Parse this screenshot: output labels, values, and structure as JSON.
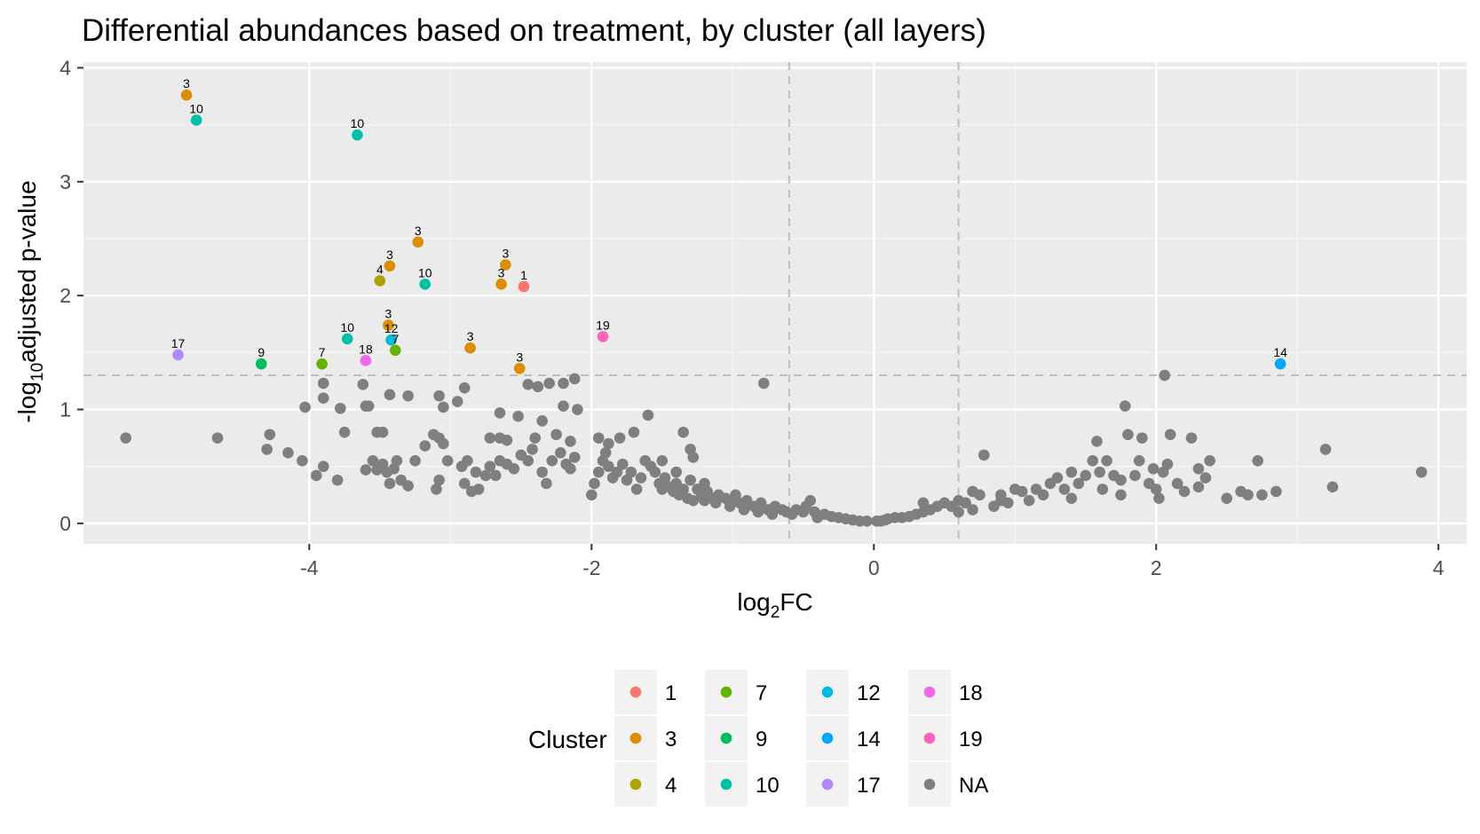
{
  "chart_data": {
    "type": "scatter",
    "title": "Differential abundances based on treatment, by cluster (all layers)",
    "xlabel": {
      "base": "log",
      "sub": "2",
      "rest": "FC"
    },
    "ylabel": {
      "base": "-log",
      "sub": "10",
      "rest": "adjusted p-value"
    },
    "xlim": [
      -5.6,
      4.2
    ],
    "ylim": [
      -0.18,
      4.05
    ],
    "x_ticks": [
      -4,
      -2,
      0,
      2,
      4
    ],
    "y_ticks": [
      0,
      1,
      2,
      3,
      4
    ],
    "x_tick_labels": [
      "-4",
      "-2",
      "0",
      "2",
      "4"
    ],
    "y_tick_labels": [
      "0",
      "1",
      "2",
      "3",
      "4"
    ],
    "vlines": [
      -0.6,
      0.6
    ],
    "hline": 1.3,
    "legend": {
      "title": "Cluster",
      "position": "bottom",
      "items": [
        {
          "label": "1",
          "color": "#F8766D"
        },
        {
          "label": "3",
          "color": "#DB8E00"
        },
        {
          "label": "4",
          "color": "#AEA200"
        },
        {
          "label": "7",
          "color": "#64B200"
        },
        {
          "label": "9",
          "color": "#00BD5C"
        },
        {
          "label": "10",
          "color": "#00C1A7"
        },
        {
          "label": "12",
          "color": "#00BADE"
        },
        {
          "label": "14",
          "color": "#00A6FF"
        },
        {
          "label": "17",
          "color": "#B385FF"
        },
        {
          "label": "18",
          "color": "#EF67EB"
        },
        {
          "label": "19",
          "color": "#FF63B6"
        },
        {
          "label": "NA",
          "color": "#7F7F7F"
        }
      ]
    },
    "significant": [
      {
        "x": -4.87,
        "y": 3.76,
        "cluster": "3"
      },
      {
        "x": -4.8,
        "y": 3.54,
        "cluster": "10"
      },
      {
        "x": -3.66,
        "y": 3.41,
        "cluster": "10"
      },
      {
        "x": -3.23,
        "y": 2.47,
        "cluster": "3"
      },
      {
        "x": -2.61,
        "y": 2.27,
        "cluster": "3"
      },
      {
        "x": -3.43,
        "y": 2.26,
        "cluster": "3"
      },
      {
        "x": -3.5,
        "y": 2.13,
        "cluster": "4"
      },
      {
        "x": -3.18,
        "y": 2.1,
        "cluster": "10"
      },
      {
        "x": -2.64,
        "y": 2.1,
        "cluster": "3"
      },
      {
        "x": -2.48,
        "y": 2.08,
        "cluster": "1"
      },
      {
        "x": -3.44,
        "y": 1.74,
        "cluster": "3"
      },
      {
        "x": -3.42,
        "y": 1.61,
        "cluster": "12"
      },
      {
        "x": -3.73,
        "y": 1.62,
        "cluster": "10"
      },
      {
        "x": -1.92,
        "y": 1.64,
        "cluster": "19"
      },
      {
        "x": -3.39,
        "y": 1.52,
        "cluster": "7"
      },
      {
        "x": -2.86,
        "y": 1.54,
        "cluster": "3"
      },
      {
        "x": -4.93,
        "y": 1.48,
        "cluster": "17"
      },
      {
        "x": -3.6,
        "y": 1.43,
        "cluster": "18"
      },
      {
        "x": -4.34,
        "y": 1.4,
        "cluster": "9"
      },
      {
        "x": -3.91,
        "y": 1.4,
        "cluster": "7"
      },
      {
        "x": -2.51,
        "y": 1.36,
        "cluster": "3"
      },
      {
        "x": 2.88,
        "y": 1.4,
        "cluster": "14"
      }
    ],
    "non_significant": [
      [
        -5.3,
        0.75
      ],
      [
        -4.65,
        0.75
      ],
      [
        -4.28,
        0.78
      ],
      [
        -4.3,
        0.65
      ],
      [
        -4.15,
        0.62
      ],
      [
        -4.05,
        0.55
      ],
      [
        -3.95,
        0.42
      ],
      [
        -3.9,
        0.5
      ],
      [
        -3.8,
        0.38
      ],
      [
        -4.03,
        1.02
      ],
      [
        -3.9,
        1.1
      ],
      [
        -3.9,
        1.23
      ],
      [
        -3.78,
        1.01
      ],
      [
        -3.75,
        0.8
      ],
      [
        -3.62,
        1.22
      ],
      [
        -3.6,
        1.03
      ],
      [
        -3.58,
        1.03
      ],
      [
        -3.52,
        0.8
      ],
      [
        -3.48,
        0.8
      ],
      [
        -3.6,
        0.47
      ],
      [
        -3.55,
        0.55
      ],
      [
        -3.52,
        0.47
      ],
      [
        -3.48,
        0.52
      ],
      [
        -3.45,
        0.45
      ],
      [
        -3.4,
        0.48
      ],
      [
        -3.43,
        0.35
      ],
      [
        -3.35,
        0.38
      ],
      [
        -3.3,
        0.33
      ],
      [
        -3.38,
        0.55
      ],
      [
        -3.43,
        1.13
      ],
      [
        -3.3,
        1.12
      ],
      [
        -3.25,
        0.55
      ],
      [
        -3.18,
        0.68
      ],
      [
        -3.12,
        0.78
      ],
      [
        -3.08,
        0.75
      ],
      [
        -3.05,
        0.7
      ],
      [
        -3.1,
        0.3
      ],
      [
        -3.08,
        0.38
      ],
      [
        -3.02,
        0.55
      ],
      [
        -3.08,
        1.12
      ],
      [
        -3.05,
        1.02
      ],
      [
        -2.95,
        1.07
      ],
      [
        -2.9,
        1.19
      ],
      [
        -2.85,
        0.28
      ],
      [
        -2.9,
        0.35
      ],
      [
        -2.8,
        0.3
      ],
      [
        -2.92,
        0.5
      ],
      [
        -2.88,
        0.55
      ],
      [
        -2.82,
        0.45
      ],
      [
        -2.75,
        0.42
      ],
      [
        -2.72,
        0.5
      ],
      [
        -2.68,
        0.42
      ],
      [
        -2.65,
        0.55
      ],
      [
        -2.6,
        0.52
      ],
      [
        -2.72,
        0.75
      ],
      [
        -2.65,
        0.75
      ],
      [
        -2.6,
        0.73
      ],
      [
        -2.55,
        0.48
      ],
      [
        -2.5,
        0.6
      ],
      [
        -2.45,
        0.55
      ],
      [
        -2.42,
        0.65
      ],
      [
        -2.4,
        0.75
      ],
      [
        -2.35,
        0.45
      ],
      [
        -2.32,
        0.35
      ],
      [
        -2.28,
        0.55
      ],
      [
        -2.22,
        0.62
      ],
      [
        -2.18,
        0.52
      ],
      [
        -2.15,
        0.48
      ],
      [
        -2.12,
        0.58
      ],
      [
        -2.25,
        0.78
      ],
      [
        -2.15,
        0.72
      ],
      [
        -2.65,
        0.97
      ],
      [
        -2.52,
        0.94
      ],
      [
        -2.35,
        0.9
      ],
      [
        -2.2,
        1.03
      ],
      [
        -2.1,
        1.0
      ],
      [
        -2.45,
        1.22
      ],
      [
        -2.38,
        1.2
      ],
      [
        -2.3,
        1.23
      ],
      [
        -2.2,
        1.23
      ],
      [
        -2.12,
        1.27
      ],
      [
        -2.0,
        0.25
      ],
      [
        -1.98,
        0.35
      ],
      [
        -1.95,
        0.45
      ],
      [
        -1.92,
        0.55
      ],
      [
        -1.9,
        0.62
      ],
      [
        -1.88,
        0.5
      ],
      [
        -1.85,
        0.4
      ],
      [
        -1.95,
        0.75
      ],
      [
        -1.88,
        0.7
      ],
      [
        -1.82,
        0.45
      ],
      [
        -1.78,
        0.52
      ],
      [
        -1.75,
        0.38
      ],
      [
        -1.72,
        0.45
      ],
      [
        -1.68,
        0.3
      ],
      [
        -1.65,
        0.4
      ],
      [
        -1.62,
        0.55
      ],
      [
        -1.58,
        0.5
      ],
      [
        -1.55,
        0.45
      ],
      [
        -1.52,
        0.35
      ],
      [
        -1.5,
        0.3
      ],
      [
        -1.48,
        0.4
      ],
      [
        -1.45,
        0.32
      ],
      [
        -1.42,
        0.28
      ],
      [
        -1.4,
        0.35
      ],
      [
        -1.38,
        0.25
      ],
      [
        -1.35,
        0.3
      ],
      [
        -1.32,
        0.22
      ],
      [
        -1.3,
        0.38
      ],
      [
        -1.28,
        0.2
      ],
      [
        -1.25,
        0.3
      ],
      [
        -1.22,
        0.25
      ],
      [
        -1.2,
        0.2
      ],
      [
        -1.18,
        0.28
      ],
      [
        -1.15,
        0.22
      ],
      [
        -1.12,
        0.18
      ],
      [
        -1.1,
        0.25
      ],
      [
        -1.05,
        0.22
      ],
      [
        -1.02,
        0.15
      ],
      [
        -1.0,
        0.2
      ],
      [
        -0.98,
        0.25
      ],
      [
        -0.95,
        0.18
      ],
      [
        -0.92,
        0.12
      ],
      [
        -0.9,
        0.2
      ],
      [
        -0.85,
        0.15
      ],
      [
        -0.82,
        0.1
      ],
      [
        -0.8,
        0.18
      ],
      [
        -0.75,
        0.12
      ],
      [
        -0.72,
        0.08
      ],
      [
        -0.7,
        0.15
      ],
      [
        -0.65,
        0.12
      ],
      [
        -0.62,
        0.1
      ],
      [
        -0.58,
        0.08
      ],
      [
        -0.55,
        0.12
      ],
      [
        -0.5,
        0.1
      ],
      [
        -0.48,
        0.15
      ],
      [
        -0.45,
        0.2
      ],
      [
        -0.42,
        0.1
      ],
      [
        -0.4,
        0.05
      ],
      [
        -0.35,
        0.08
      ],
      [
        -0.3,
        0.06
      ],
      [
        -0.25,
        0.05
      ],
      [
        -0.2,
        0.04
      ],
      [
        -0.15,
        0.03
      ],
      [
        -0.1,
        0.02
      ],
      [
        -0.05,
        0.02
      ],
      [
        -1.6,
        0.95
      ],
      [
        -1.8,
        0.75
      ],
      [
        -1.7,
        0.8
      ],
      [
        -1.5,
        0.55
      ],
      [
        -1.4,
        0.45
      ],
      [
        -1.35,
        0.8
      ],
      [
        -1.2,
        0.35
      ],
      [
        -0.78,
        1.23
      ],
      [
        -1.3,
        0.65
      ],
      [
        -1.28,
        0.58
      ],
      [
        0.02,
        0.02
      ],
      [
        0.05,
        0.02
      ],
      [
        0.08,
        0.03
      ],
      [
        0.1,
        0.04
      ],
      [
        0.15,
        0.05
      ],
      [
        0.2,
        0.05
      ],
      [
        0.25,
        0.06
      ],
      [
        0.3,
        0.08
      ],
      [
        0.35,
        0.1
      ],
      [
        0.4,
        0.12
      ],
      [
        0.45,
        0.15
      ],
      [
        0.5,
        0.18
      ],
      [
        0.55,
        0.15
      ],
      [
        0.6,
        0.2
      ],
      [
        0.65,
        0.18
      ],
      [
        0.7,
        0.12
      ],
      [
        0.75,
        0.25
      ],
      [
        0.78,
        0.6
      ],
      [
        0.85,
        0.15
      ],
      [
        0.9,
        0.2
      ],
      [
        0.95,
        0.18
      ],
      [
        1.0,
        0.3
      ],
      [
        1.05,
        0.28
      ],
      [
        1.1,
        0.2
      ],
      [
        1.2,
        0.25
      ],
      [
        1.25,
        0.35
      ],
      [
        1.3,
        0.4
      ],
      [
        1.35,
        0.3
      ],
      [
        1.4,
        0.45
      ],
      [
        1.45,
        0.35
      ],
      [
        1.5,
        0.42
      ],
      [
        1.55,
        0.55
      ],
      [
        1.58,
        0.72
      ],
      [
        1.6,
        0.45
      ],
      [
        1.62,
        0.3
      ],
      [
        1.65,
        0.55
      ],
      [
        1.7,
        0.42
      ],
      [
        1.75,
        0.25
      ],
      [
        1.78,
        1.03
      ],
      [
        1.8,
        0.78
      ],
      [
        1.85,
        0.42
      ],
      [
        1.88,
        0.55
      ],
      [
        1.9,
        0.75
      ],
      [
        1.95,
        0.35
      ],
      [
        1.98,
        0.48
      ],
      [
        2.0,
        0.3
      ],
      [
        2.02,
        0.22
      ],
      [
        2.05,
        0.45
      ],
      [
        2.08,
        0.52
      ],
      [
        2.1,
        0.78
      ],
      [
        2.06,
        1.3
      ],
      [
        2.15,
        0.35
      ],
      [
        2.2,
        0.28
      ],
      [
        2.25,
        0.75
      ],
      [
        2.3,
        0.48
      ],
      [
        2.35,
        0.4
      ],
      [
        2.38,
        0.55
      ],
      [
        2.5,
        0.22
      ],
      [
        2.6,
        0.28
      ],
      [
        2.65,
        0.25
      ],
      [
        2.72,
        0.55
      ],
      [
        2.75,
        0.25
      ],
      [
        2.85,
        0.28
      ],
      [
        3.2,
        0.65
      ],
      [
        3.25,
        0.32
      ],
      [
        3.88,
        0.45
      ],
      [
        0.7,
        0.28
      ],
      [
        0.9,
        0.25
      ],
      [
        1.15,
        0.3
      ],
      [
        2.3,
        0.32
      ],
      [
        1.4,
        0.22
      ],
      [
        0.6,
        0.1
      ],
      [
        0.35,
        0.18
      ],
      [
        1.75,
        0.38
      ]
    ]
  }
}
